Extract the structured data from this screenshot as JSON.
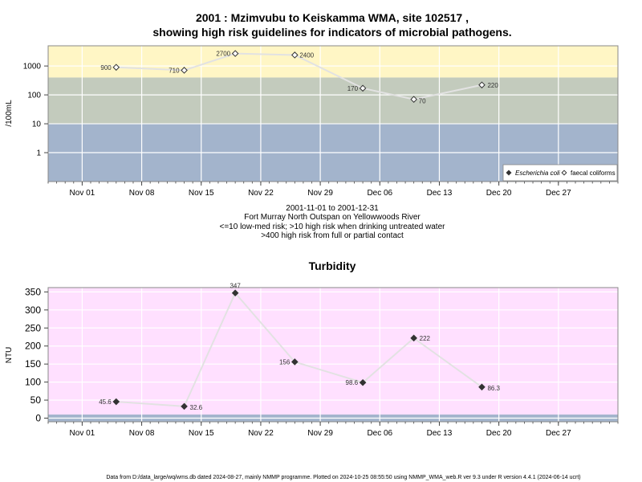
{
  "chart_data": [
    {
      "type": "line",
      "title_line1": "2001 : Mzimvubu to Keiskamma WMA, site 102517 ,",
      "title_line2": "showing high risk guidelines for indicators of microbial pathogens.",
      "ylabel": "/100mL",
      "y_scale": "log",
      "ylim": [
        0.1,
        5000
      ],
      "y_ticks": [
        1,
        10,
        100,
        1000
      ],
      "y_tick_labels": [
        "1",
        "10",
        "100",
        "1000"
      ],
      "x_range": [
        "2001-10-28",
        "2002-01-03"
      ],
      "x_ticks": [
        "2001-11-01",
        "2001-11-08",
        "2001-11-15",
        "2001-11-22",
        "2001-11-29",
        "2001-12-06",
        "2001-12-13",
        "2001-12-20",
        "2001-12-27"
      ],
      "x_tick_labels": [
        "Nov 01",
        "Nov 08",
        "Nov 15",
        "Nov 22",
        "Nov 29",
        "Dec 06",
        "Dec 13",
        "Dec 20",
        "Dec 27"
      ],
      "bands": [
        {
          "from": 0.1,
          "to": 10,
          "color": "#a3b4cc"
        },
        {
          "from": 10,
          "to": 400,
          "color": "#c3cbbd"
        },
        {
          "from": 400,
          "to": 5000,
          "color": "#fff6c5"
        }
      ],
      "grid": true,
      "legend_position": "bottom-right",
      "series": [
        {
          "name": "Escherichia coli",
          "marker": "filled-diamond",
          "x": [],
          "values": []
        },
        {
          "name": "faecal coliforms",
          "marker": "open-diamond",
          "x": [
            "2001-11-05",
            "2001-11-13",
            "2001-11-19",
            "2001-11-26",
            "2001-12-04",
            "2001-12-10",
            "2001-12-18"
          ],
          "values": [
            900,
            710,
            2700,
            2400,
            170,
            70,
            220
          ],
          "labels": [
            "900",
            "710",
            "2700",
            "2400",
            "170",
            "70",
            "220"
          ]
        }
      ],
      "caption": [
        "2001-11-01 to 2001-12-31",
        "Fort Murray North Outspan on Yellowwoods River",
        "<=10 low-med risk; >10 high risk when drinking untreated water",
        ">400 high risk from full or partial contact"
      ]
    },
    {
      "type": "line",
      "title": "Turbidity",
      "ylabel": "NTU",
      "ylim": [
        -10,
        362
      ],
      "y_ticks": [
        0,
        50,
        100,
        150,
        200,
        250,
        300,
        350
      ],
      "y_tick_labels": [
        "0",
        "50",
        "100",
        "150",
        "200",
        "250",
        "300",
        "350"
      ],
      "x_range": [
        "2001-10-28",
        "2002-01-03"
      ],
      "x_ticks": [
        "2001-11-01",
        "2001-11-08",
        "2001-11-15",
        "2001-11-22",
        "2001-11-29",
        "2001-12-06",
        "2001-12-13",
        "2001-12-20",
        "2001-12-27"
      ],
      "x_tick_labels": [
        "Nov 01",
        "Nov 08",
        "Nov 15",
        "Nov 22",
        "Nov 29",
        "Dec 06",
        "Dec 13",
        "Dec 20",
        "Dec 27"
      ],
      "bands": [
        {
          "from": -10,
          "to": 10,
          "color": "#a3b4cc"
        },
        {
          "from": 10,
          "to": 362,
          "color": "#ffe0ff"
        }
      ],
      "grid": true,
      "series": [
        {
          "name": "",
          "marker": "filled-diamond",
          "x": [
            "2001-11-05",
            "2001-11-13",
            "2001-11-19",
            "2001-11-26",
            "2001-12-04",
            "2001-12-10",
            "2001-12-18"
          ],
          "values": [
            45.6,
            32.6,
            347,
            156,
            98.6,
            222,
            86.3
          ],
          "labels": [
            "45.6",
            "32.6",
            "347",
            "156",
            "98.6",
            "222",
            "86.3"
          ]
        }
      ]
    }
  ],
  "footer": "Data from D:/data_large/wq/wms.db dated 2024-08-27, mainly NMMP programme. Plotted on 2024-10-25 08:55:50 using NMMP_WMA_web.R ver 9.3 under R version 4.4.1 (2024-06-14 ucrt)"
}
